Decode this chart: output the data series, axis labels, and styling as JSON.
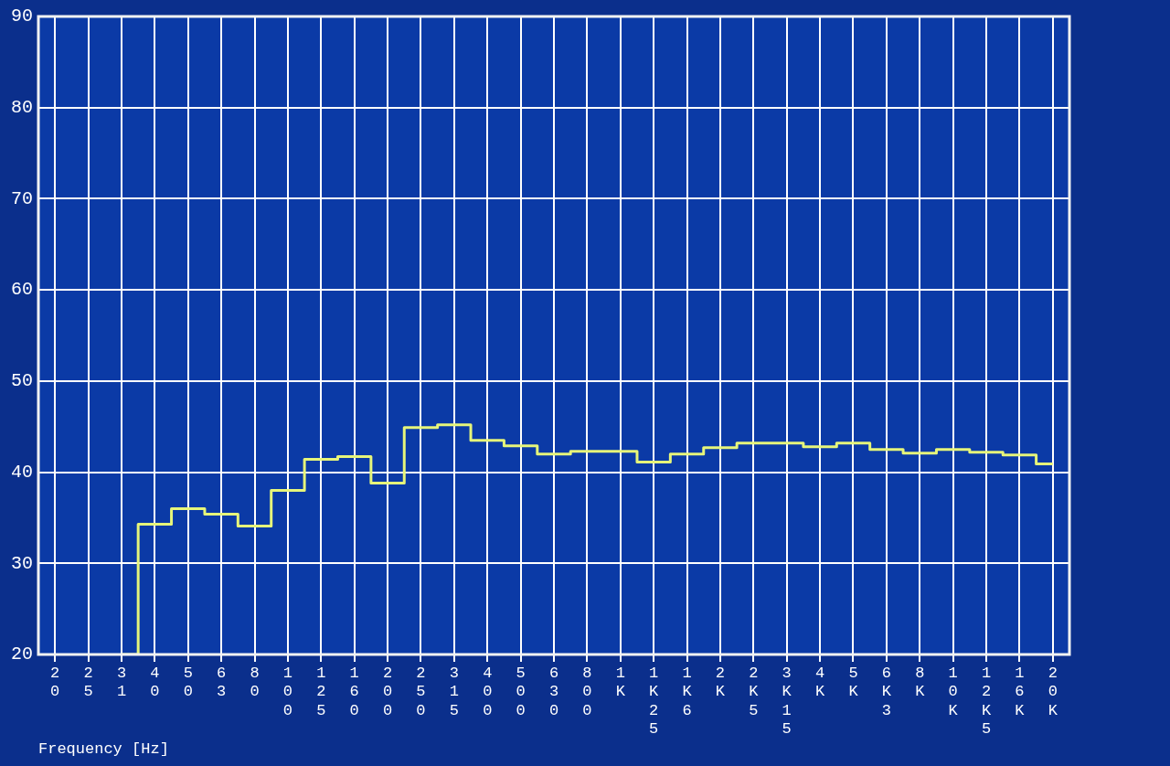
{
  "chart_data": {
    "type": "step",
    "xlabel": "Frequency [Hz]",
    "categories": [
      "20",
      "25",
      "31",
      "40",
      "50",
      "63",
      "80",
      "100",
      "125",
      "160",
      "200",
      "250",
      "315",
      "400",
      "500",
      "630",
      "800",
      "1K",
      "1K25",
      "1K6",
      "2K",
      "2K5",
      "3K15",
      "4K",
      "5K",
      "6K3",
      "8K",
      "10K",
      "12K5",
      "16K",
      "20K"
    ],
    "series": [
      {
        "color": "#e6f57a",
        "values": [
          null,
          null,
          20,
          34.3,
          36.0,
          35.4,
          34.1,
          38.0,
          41.4,
          41.7,
          38.8,
          44.9,
          45.2,
          43.5,
          42.9,
          42.0,
          42.3,
          42.3,
          41.1,
          42.0,
          42.7,
          43.2,
          43.2,
          42.8,
          43.2,
          42.5,
          42.1,
          42.5,
          42.2,
          41.9,
          40.9
        ]
      }
    ],
    "ylim": [
      20,
      90
    ],
    "yticks": [
      20,
      30,
      40,
      50,
      60,
      70,
      80,
      90
    ],
    "grid": true,
    "marker": "none",
    "line_style": "solid"
  }
}
